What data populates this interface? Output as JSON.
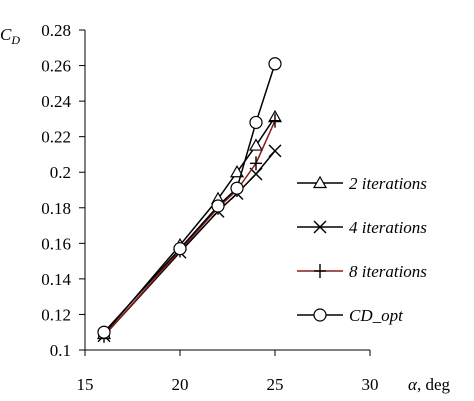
{
  "chart_data": {
    "type": "line",
    "title": "",
    "ylabel_prefix": "C",
    "ylabel_sub": "D",
    "xlabel_symbol": "α",
    "xlabel_unit": ", deg",
    "xlim": [
      15,
      30
    ],
    "ylim": [
      0.1,
      0.28
    ],
    "x_ticks": [
      15,
      20,
      25,
      30
    ],
    "x_tick_labels": [
      "15",
      "20",
      "25",
      "30"
    ],
    "y_ticks": [
      0.1,
      0.12,
      0.14,
      0.16,
      0.18,
      0.2,
      0.22,
      0.24,
      0.26,
      0.28
    ],
    "y_tick_labels": [
      "0.1",
      "0.12",
      "0.14",
      "0.16",
      "0.18",
      "0.2",
      "0.22",
      "0.24",
      "0.26",
      "0.28"
    ],
    "grid": false,
    "legend_position": "right",
    "series": [
      {
        "name": "2 iterations",
        "marker": "triangle",
        "color": "#000000",
        "x": [
          16,
          20,
          22,
          23,
          24,
          25
        ],
        "y": [
          0.109,
          0.159,
          0.185,
          0.2,
          0.215,
          0.231
        ]
      },
      {
        "name": "4 iterations",
        "marker": "x",
        "color": "#000000",
        "x": [
          16,
          20,
          22,
          23,
          24,
          25
        ],
        "y": [
          0.108,
          0.155,
          0.178,
          0.188,
          0.199,
          0.212
        ]
      },
      {
        "name": "8 iterations",
        "marker": "plus",
        "color": "#8b1a1a",
        "x": [
          16,
          20,
          22,
          23,
          24,
          25
        ],
        "y": [
          0.108,
          0.156,
          0.18,
          0.19,
          0.205,
          0.229
        ]
      },
      {
        "name": "CD_opt",
        "marker": "circle",
        "color": "#000000",
        "x": [
          16,
          20,
          22,
          23,
          24,
          25
        ],
        "y": [
          0.11,
          0.157,
          0.181,
          0.191,
          0.228,
          0.261
        ]
      }
    ]
  }
}
